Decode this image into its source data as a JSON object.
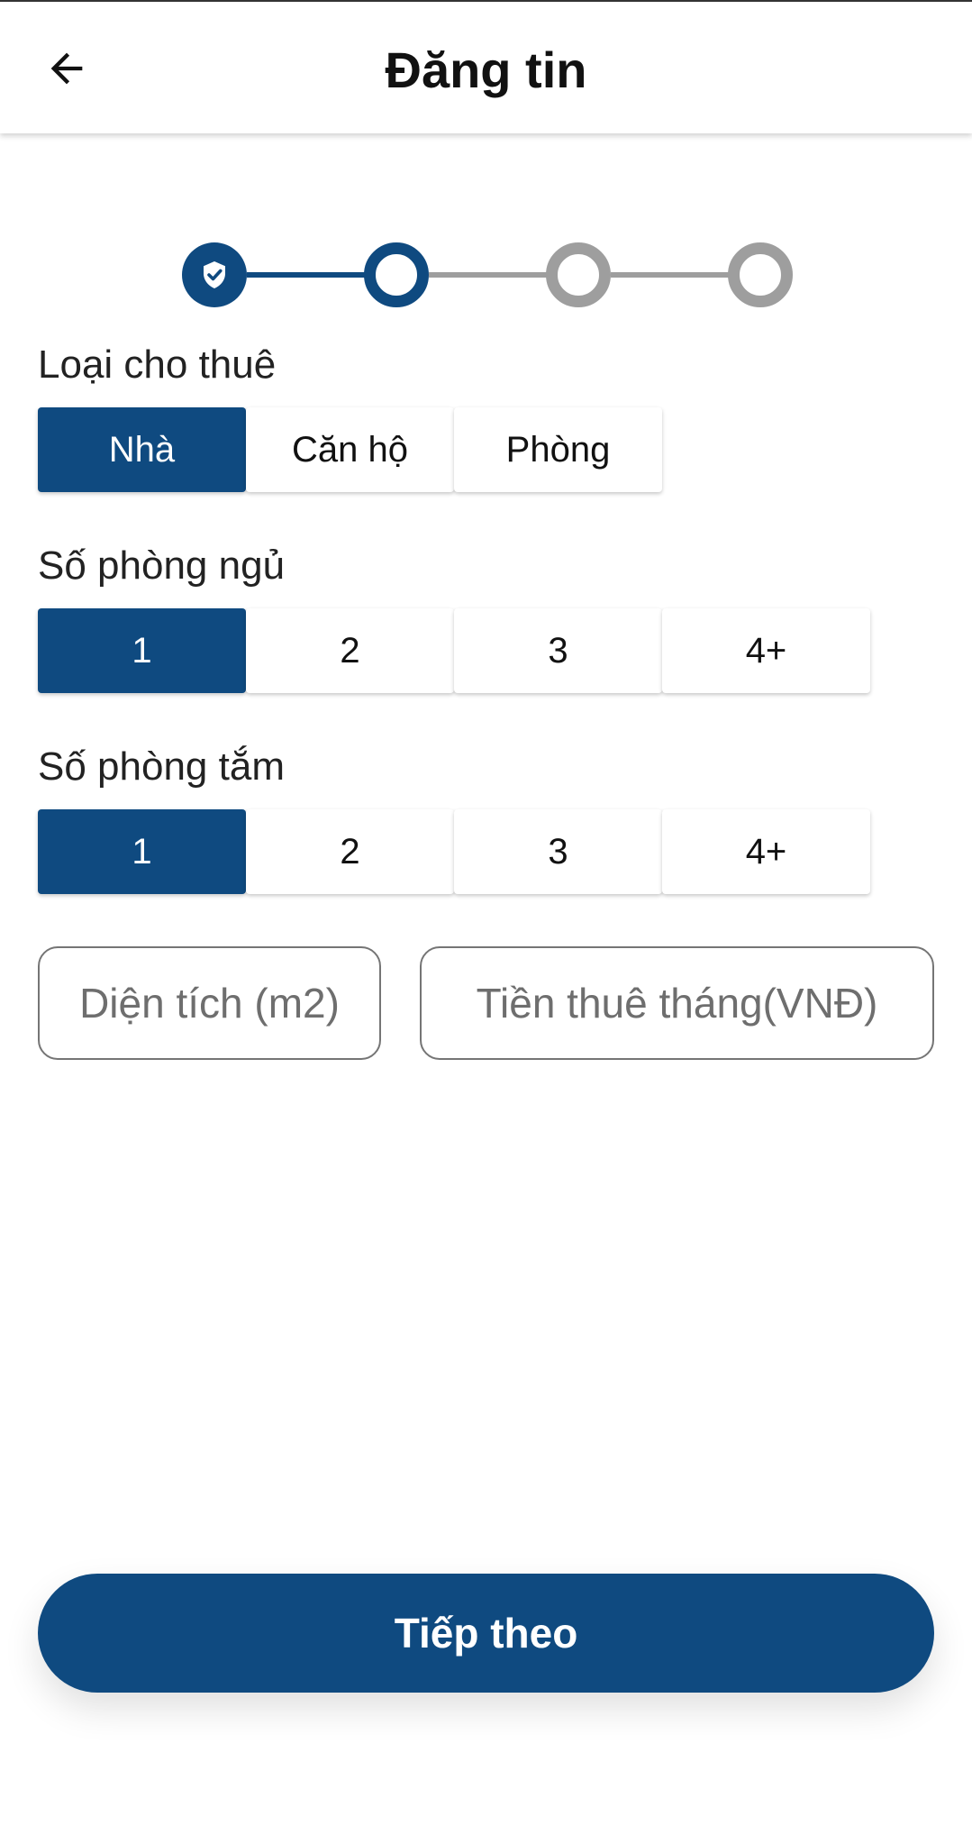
{
  "header": {
    "title": "Đăng tin",
    "back_icon": "arrow-left-icon"
  },
  "stepper": {
    "total_steps": 4,
    "current_step": 2,
    "completed_icon": "shield-check-icon",
    "colors": {
      "active": "#0f4a80",
      "inactive": "#9e9e9e"
    }
  },
  "rental_type": {
    "label": "Loại cho thuê",
    "options": [
      "Nhà",
      "Căn hộ",
      "Phòng"
    ],
    "selected": "Nhà"
  },
  "bedrooms": {
    "label": "Số phòng ngủ",
    "options": [
      "1",
      "2",
      "3",
      "4+"
    ],
    "selected": "1"
  },
  "bathrooms": {
    "label": "Số phòng tắm",
    "options": [
      "1",
      "2",
      "3",
      "4+"
    ],
    "selected": "1"
  },
  "fields": {
    "area": {
      "placeholder": "Diện tích (m2)",
      "value": ""
    },
    "rent": {
      "placeholder": "Tiền thuê tháng(VNĐ)",
      "value": ""
    }
  },
  "actions": {
    "next_label": "Tiếp theo"
  },
  "theme": {
    "primary": "#0f4a80",
    "background": "#ffffff"
  }
}
